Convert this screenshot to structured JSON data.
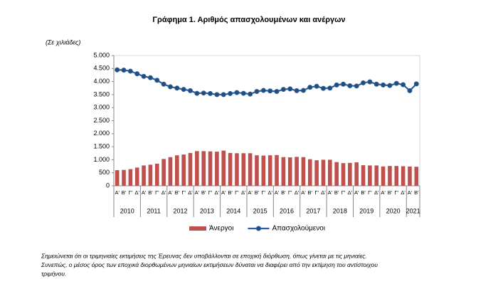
{
  "chart_data": {
    "type": "bar_line",
    "title": "Γράφημα 1. Αριθμός απασχολουμένων και ανέργων",
    "unit_label": "(Σε χιλιάδες)",
    "categories": [
      "Α'",
      "Β'",
      "Γ'",
      "Δ'",
      "Α'",
      "Β'",
      "Γ'",
      "Δ'",
      "Α'",
      "Β'",
      "Γ'",
      "Δ'",
      "Α'",
      "Β'",
      "Γ'",
      "Δ'",
      "Α'",
      "Β'",
      "Γ'",
      "Δ'",
      "Α'",
      "Β'",
      "Γ'",
      "Δ'",
      "Α'",
      "Β'",
      "Γ'",
      "Δ'",
      "Α'",
      "Β'",
      "Γ'",
      "Δ'",
      "Α'",
      "Β'",
      "Γ'",
      "Δ'",
      "Α'",
      "Β'",
      "Γ'",
      "Δ'",
      "Α'",
      "Β'",
      "Γ'",
      "Δ'",
      "Α'",
      "Β'"
    ],
    "years": [
      "2010",
      "2011",
      "2012",
      "2013",
      "2014",
      "2015",
      "2016",
      "2017",
      "2018",
      "2019",
      "2020",
      "2021"
    ],
    "series": [
      {
        "name": "Άνεργοι",
        "type": "bar",
        "color": "#c0504d",
        "values": [
          600,
          610,
          640,
          700,
          780,
          810,
          850,
          1030,
          1100,
          1170,
          1200,
          1260,
          1330,
          1330,
          1320,
          1310,
          1350,
          1260,
          1250,
          1250,
          1250,
          1170,
          1160,
          1170,
          1180,
          1100,
          1090,
          1110,
          1100,
          1020,
          980,
          1000,
          1000,
          910,
          870,
          880,
          900,
          790,
          780,
          780,
          740,
          760,
          760,
          750,
          740,
          730
        ]
      },
      {
        "name": "Απασχολούμενοι",
        "type": "line",
        "color": "#2f5d9b",
        "values": [
          4450,
          4440,
          4400,
          4300,
          4200,
          4150,
          4050,
          3900,
          3800,
          3750,
          3700,
          3650,
          3550,
          3560,
          3540,
          3500,
          3500,
          3540,
          3580,
          3550,
          3520,
          3620,
          3660,
          3640,
          3620,
          3700,
          3720,
          3650,
          3660,
          3780,
          3820,
          3740,
          3750,
          3870,
          3900,
          3840,
          3830,
          3950,
          3990,
          3900,
          3870,
          3850,
          3930,
          3880,
          3650,
          3910
        ]
      }
    ],
    "ylim": [
      0,
      5000
    ],
    "yticks": [
      0,
      {
        "value": 500,
        "label": "500"
      },
      {
        "value": 1000,
        "label": "1.000"
      },
      {
        "value": 1500,
        "label": "1.500"
      },
      {
        "value": 2000,
        "label": "2.000"
      },
      {
        "value": 2500,
        "label": "2.500"
      },
      {
        "value": 3000,
        "label": "3.000"
      },
      {
        "value": 3500,
        "label": "3.500"
      },
      {
        "value": 4000,
        "label": "4.000"
      },
      {
        "value": 4500,
        "label": "4.500"
      },
      {
        "value": 5000,
        "label": "5.000"
      }
    ],
    "grid": false,
    "legend": "bottom",
    "footnote": [
      "Σημειώνεται ότι οι τριμηνιαίες εκτιμήσεις της Έρευνας δεν υποβάλλονται σε εποχική διόρθωση, όπως γίνεται με τις μηνιαίες.",
      "Συνεπώς, ο μέσος όρος των εποχικά διορθωμένων μηνιαίων εκτιμήσεων δύναται να διαφέρει από την εκτίμηση του αντίστοιχου",
      "τριμήνου."
    ]
  }
}
